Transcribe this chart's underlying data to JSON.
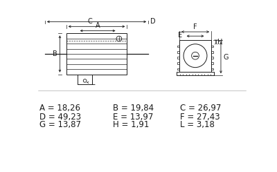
{
  "bg_color": "#ffffff",
  "line_color": "#1a1a1a",
  "text_color": "#1a1a1a",
  "dim_rows": [
    [
      "A = 18,26",
      "B = 19,84",
      "C = 26,97"
    ],
    [
      "D = 49,23",
      "E = 13,97",
      "F = 27,43"
    ],
    [
      "G = 13,87",
      "H = 1,91",
      "L = 3,18"
    ]
  ],
  "font_size_dim": 8.5,
  "font_size_label": 7.0
}
